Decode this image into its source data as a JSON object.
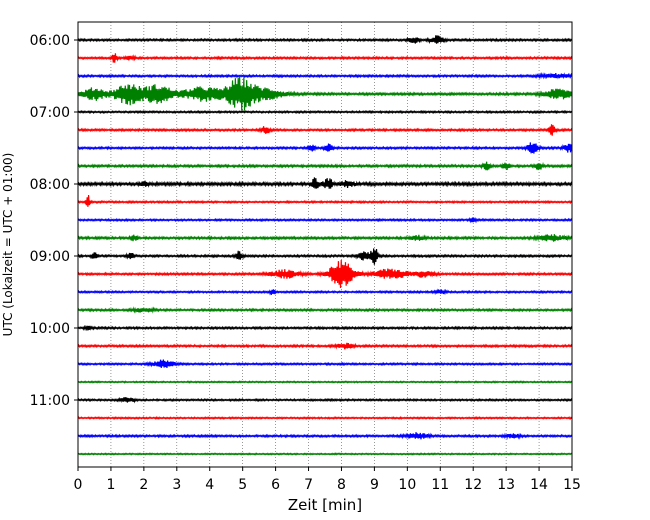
{
  "chart_data": {
    "type": "line",
    "title": "",
    "xlabel": "Zeit  [min]",
    "ylabel": "UTC (Lokalzeit = UTC + 01:00)",
    "xlim": [
      0,
      15
    ],
    "x_ticks": [
      "0",
      "1",
      "2",
      "3",
      "4",
      "5",
      "6",
      "7",
      "8",
      "9",
      "10",
      "11",
      "12",
      "13",
      "14",
      "15"
    ],
    "y_ticks": [
      "06:00",
      "07:00",
      "08:00",
      "09:00",
      "10:00",
      "11:00"
    ],
    "y_tick_traces": [
      0,
      4,
      8,
      12,
      16,
      20
    ],
    "grid": "vertical dotted",
    "legend": "none",
    "colors": [
      "#000000",
      "#ff0000",
      "#0000ff",
      "#008000"
    ],
    "series": [
      {
        "start": "06:00",
        "color": "#000000",
        "noise": 0.9,
        "events": [
          {
            "x": 10.2,
            "amp": 3,
            "w": 0.15
          },
          {
            "x": 10.9,
            "amp": 4,
            "w": 0.2
          }
        ]
      },
      {
        "start": "06:15",
        "color": "#ff0000",
        "noise": 0.9,
        "events": [
          {
            "x": 1.1,
            "amp": 5,
            "w": 0.08
          },
          {
            "x": 1.6,
            "amp": 2,
            "w": 0.15
          }
        ]
      },
      {
        "start": "06:30",
        "color": "#0000ff",
        "noise": 0.9,
        "events": [
          {
            "x": 14.5,
            "amp": 2,
            "w": 0.4
          }
        ]
      },
      {
        "start": "06:45",
        "color": "#008000",
        "noise": 1.0,
        "events": [
          {
            "x": 0.5,
            "amp": 6,
            "w": 0.35
          },
          {
            "x": 1.5,
            "amp": 10,
            "w": 0.4
          },
          {
            "x": 2.4,
            "amp": 9,
            "w": 0.5
          },
          {
            "x": 3.8,
            "amp": 7,
            "w": 0.6
          },
          {
            "x": 4.9,
            "amp": 15,
            "w": 0.4
          },
          {
            "x": 5.6,
            "amp": 6,
            "w": 0.6
          },
          {
            "x": 14.6,
            "amp": 5,
            "w": 0.4
          }
        ]
      },
      {
        "start": "07:00",
        "color": "#000000",
        "noise": 0.8,
        "events": []
      },
      {
        "start": "07:15",
        "color": "#ff0000",
        "noise": 0.9,
        "events": [
          {
            "x": 5.7,
            "amp": 4,
            "w": 0.12
          },
          {
            "x": 14.4,
            "amp": 5,
            "w": 0.1
          }
        ]
      },
      {
        "start": "07:30",
        "color": "#0000ff",
        "noise": 0.9,
        "events": [
          {
            "x": 7.1,
            "amp": 3,
            "w": 0.1
          },
          {
            "x": 7.6,
            "amp": 4,
            "w": 0.1
          },
          {
            "x": 13.8,
            "amp": 6,
            "w": 0.15
          },
          {
            "x": 14.9,
            "amp": 4,
            "w": 0.15
          }
        ]
      },
      {
        "start": "07:45",
        "color": "#008000",
        "noise": 1.0,
        "events": [
          {
            "x": 12.4,
            "amp": 5,
            "w": 0.1
          },
          {
            "x": 13.0,
            "amp": 4,
            "w": 0.1
          },
          {
            "x": 14.0,
            "amp": 5,
            "w": 0.1
          }
        ]
      },
      {
        "start": "08:00",
        "color": "#000000",
        "noise": 1.3,
        "events": [
          {
            "x": 2.0,
            "amp": 2.5,
            "w": 0.1
          },
          {
            "x": 7.2,
            "amp": 6,
            "w": 0.1
          },
          {
            "x": 7.6,
            "amp": 5,
            "w": 0.15
          },
          {
            "x": 8.2,
            "amp": 3,
            "w": 0.2
          }
        ]
      },
      {
        "start": "08:15",
        "color": "#ff0000",
        "noise": 0.8,
        "events": [
          {
            "x": 0.3,
            "amp": 8,
            "w": 0.05
          }
        ]
      },
      {
        "start": "08:30",
        "color": "#0000ff",
        "noise": 0.8,
        "events": [
          {
            "x": 12.0,
            "amp": 2,
            "w": 0.1
          }
        ]
      },
      {
        "start": "08:45",
        "color": "#008000",
        "noise": 1.0,
        "events": [
          {
            "x": 1.7,
            "amp": 2.5,
            "w": 0.1
          },
          {
            "x": 10.3,
            "amp": 2.5,
            "w": 0.2
          },
          {
            "x": 14.4,
            "amp": 3,
            "w": 0.4
          }
        ]
      },
      {
        "start": "09:00",
        "color": "#000000",
        "noise": 0.9,
        "events": [
          {
            "x": 0.5,
            "amp": 3,
            "w": 0.1
          },
          {
            "x": 1.6,
            "amp": 3,
            "w": 0.1
          },
          {
            "x": 4.9,
            "amp": 5,
            "w": 0.1
          },
          {
            "x": 8.7,
            "amp": 4,
            "w": 0.2
          },
          {
            "x": 9.0,
            "amp": 9,
            "w": 0.1
          }
        ]
      },
      {
        "start": "09:15",
        "color": "#ff0000",
        "noise": 0.9,
        "events": [
          {
            "x": 6.3,
            "amp": 4,
            "w": 0.45
          },
          {
            "x": 8.0,
            "amp": 14,
            "w": 0.35
          },
          {
            "x": 9.5,
            "amp": 5,
            "w": 0.5
          },
          {
            "x": 10.5,
            "amp": 3,
            "w": 0.3
          }
        ]
      },
      {
        "start": "09:30",
        "color": "#0000ff",
        "noise": 0.8,
        "events": [
          {
            "x": 5.9,
            "amp": 3,
            "w": 0.08
          },
          {
            "x": 11.0,
            "amp": 2,
            "w": 0.15
          }
        ]
      },
      {
        "start": "09:45",
        "color": "#008000",
        "noise": 0.9,
        "events": [
          {
            "x": 2.0,
            "amp": 2,
            "w": 0.3
          }
        ]
      },
      {
        "start": "10:00",
        "color": "#000000",
        "noise": 0.9,
        "events": [
          {
            "x": 0.3,
            "amp": 2,
            "w": 0.1
          }
        ]
      },
      {
        "start": "10:15",
        "color": "#ff0000",
        "noise": 0.9,
        "events": [
          {
            "x": 8.1,
            "amp": 2.5,
            "w": 0.25
          }
        ]
      },
      {
        "start": "10:30",
        "color": "#0000ff",
        "noise": 0.8,
        "events": [
          {
            "x": 2.6,
            "amp": 4,
            "w": 0.3
          }
        ]
      },
      {
        "start": "10:45",
        "color": "#008000",
        "noise": 0.6,
        "events": []
      },
      {
        "start": "11:00",
        "color": "#000000",
        "noise": 0.8,
        "events": [
          {
            "x": 1.5,
            "amp": 2.5,
            "w": 0.2
          }
        ]
      },
      {
        "start": "11:15",
        "color": "#ff0000",
        "noise": 0.7,
        "events": []
      },
      {
        "start": "11:30",
        "color": "#0000ff",
        "noise": 0.9,
        "events": [
          {
            "x": 10.3,
            "amp": 3,
            "w": 0.3
          },
          {
            "x": 13.2,
            "amp": 2,
            "w": 0.2
          }
        ]
      },
      {
        "start": "11:45",
        "color": "#008000",
        "noise": 0.6,
        "events": []
      }
    ]
  }
}
